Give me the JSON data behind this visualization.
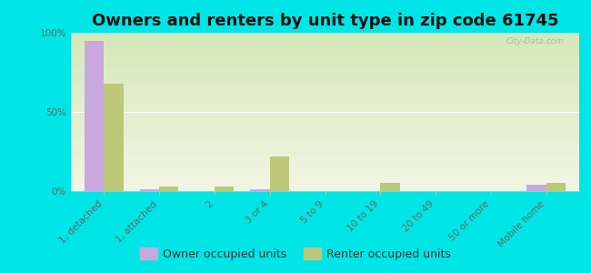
{
  "title": "Owners and renters by unit type in zip code 61745",
  "categories": [
    "1, detached",
    "1, attached",
    "2",
    "3 or 4",
    "5 to 9",
    "10 to 19",
    "20 to 49",
    "50 or more",
    "Mobile home"
  ],
  "owner_values": [
    95,
    1,
    0,
    1,
    0,
    0,
    0,
    0,
    4
  ],
  "renter_values": [
    68,
    3,
    3,
    22,
    0,
    5,
    0,
    0,
    5
  ],
  "owner_color": "#c9a8e0",
  "renter_color": "#bec87a",
  "background_color": "#00e5e5",
  "plot_bg_top": "#d5e8b8",
  "plot_bg_bottom": "#f2f5e4",
  "bar_width": 0.35,
  "ylim": [
    0,
    100
  ],
  "yticks": [
    0,
    50,
    100
  ],
  "ytick_labels": [
    "0%",
    "50%",
    "100%"
  ],
  "legend_owner": "Owner occupied units",
  "legend_renter": "Renter occupied units",
  "title_fontsize": 13,
  "tick_fontsize": 7.5,
  "legend_fontsize": 9,
  "watermark": "City-Data.com"
}
